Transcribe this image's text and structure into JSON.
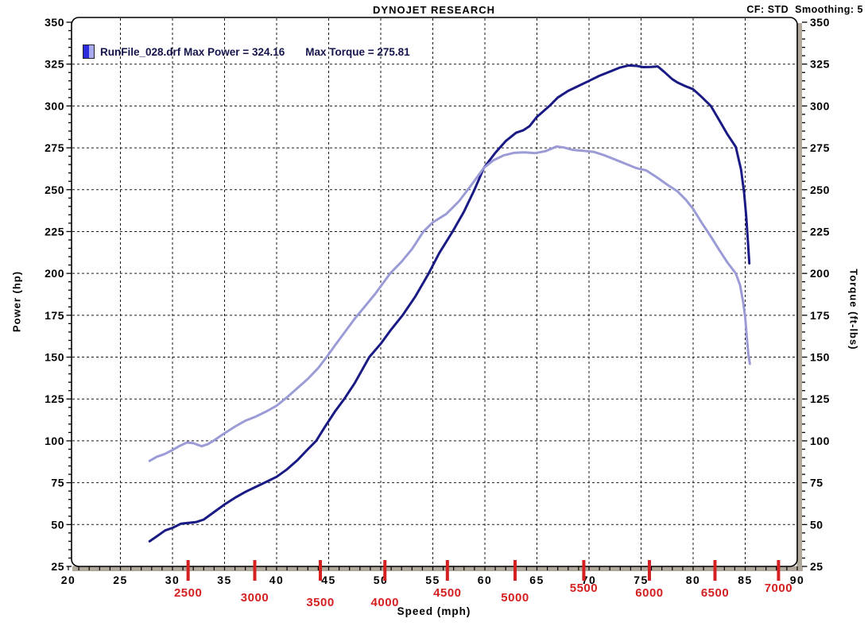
{
  "header": {
    "title": "DYNOJET RESEARCH",
    "cf_info": "CF: STD  Smoothing: 5"
  },
  "legend": {
    "run_label": "RunFile_028.drf Max Power = 324.16",
    "torque_label": "Max Torque = 275.81",
    "swatch_left_color": "#2b2bdc",
    "swatch_right_color": "#a9a9ef"
  },
  "chart_data": {
    "type": "line",
    "title": "DYNOJET RESEARCH",
    "xlabel": "Speed (mph)",
    "ylabel_left": "Power (hp)",
    "ylabel_right": "Torque (ft-lbs)",
    "xlim": [
      20,
      90
    ],
    "ylim": [
      25,
      350
    ],
    "x_tick_labels": [
      20,
      25,
      30,
      35,
      40,
      45,
      50,
      55,
      60,
      65,
      70,
      75,
      80,
      85,
      90
    ],
    "x_minor_step": 1,
    "y_tick_labels": [
      25,
      50,
      75,
      100,
      125,
      150,
      175,
      200,
      225,
      250,
      275,
      300,
      325,
      350
    ],
    "y_minor_step": 5,
    "grid": "dashed, vertical every 5 mph, horizontal every 25 units",
    "frame_shadow_color": "#b0a89a",
    "grid_color": "#1a1a1a",
    "max_power": "324.16",
    "max_torque": "275.81",
    "series": [
      {
        "name": "Power",
        "color": "#1a1a85",
        "points": [
          [
            27.8,
            40
          ],
          [
            28.5,
            43
          ],
          [
            29.3,
            46.5
          ],
          [
            30,
            48
          ],
          [
            30.8,
            50.5
          ],
          [
            31.5,
            51
          ],
          [
            32.3,
            51.5
          ],
          [
            33,
            53
          ],
          [
            34,
            57.5
          ],
          [
            35,
            62
          ],
          [
            36,
            66
          ],
          [
            37,
            69.5
          ],
          [
            38,
            72.5
          ],
          [
            39,
            75.5
          ],
          [
            40,
            78.5
          ],
          [
            41,
            83
          ],
          [
            42,
            88.5
          ],
          [
            43,
            95
          ],
          [
            43.8,
            100
          ],
          [
            44.6,
            108
          ],
          [
            45.6,
            117.5
          ],
          [
            46.5,
            125
          ],
          [
            47.5,
            134.5
          ],
          [
            48.9,
            150
          ],
          [
            50,
            158
          ],
          [
            51,
            166.5
          ],
          [
            52.1,
            175
          ],
          [
            53.3,
            186
          ],
          [
            54.6,
            200
          ],
          [
            55.6,
            212
          ],
          [
            56.9,
            225
          ],
          [
            58,
            237
          ],
          [
            59,
            250
          ],
          [
            59.9,
            263
          ],
          [
            61,
            272
          ],
          [
            62,
            279
          ],
          [
            63,
            284
          ],
          [
            63.7,
            285.5
          ],
          [
            64.3,
            288
          ],
          [
            65,
            293.5
          ],
          [
            66.2,
            300
          ],
          [
            67,
            305
          ],
          [
            68,
            309
          ],
          [
            69,
            312
          ],
          [
            70,
            315
          ],
          [
            71,
            318
          ],
          [
            72,
            320.5
          ],
          [
            73,
            323
          ],
          [
            73.8,
            324.2
          ],
          [
            74.6,
            323.9
          ],
          [
            75.2,
            323.2
          ],
          [
            76,
            323.3
          ],
          [
            76.6,
            323.6
          ],
          [
            77.2,
            320.5
          ],
          [
            78,
            316
          ],
          [
            78.5,
            314
          ],
          [
            79.2,
            312
          ],
          [
            80,
            310
          ],
          [
            80.8,
            305.5
          ],
          [
            81.7,
            300
          ],
          [
            82.5,
            291.5
          ],
          [
            83.3,
            283
          ],
          [
            84.1,
            275.5
          ],
          [
            84.6,
            262
          ],
          [
            84.9,
            248
          ],
          [
            85.1,
            234
          ],
          [
            85.25,
            220
          ],
          [
            85.4,
            206
          ]
        ]
      },
      {
        "name": "Torque",
        "color": "#9b9bd6",
        "points": [
          [
            27.8,
            88
          ],
          [
            28.5,
            90.5
          ],
          [
            29.2,
            92
          ],
          [
            30,
            94.5
          ],
          [
            30.7,
            97
          ],
          [
            31.4,
            99
          ],
          [
            32,
            98.6
          ],
          [
            32.8,
            96.8
          ],
          [
            33.4,
            98
          ],
          [
            34,
            100.3
          ],
          [
            35,
            104.5
          ],
          [
            36,
            108.5
          ],
          [
            37,
            112
          ],
          [
            38,
            114.5
          ],
          [
            39,
            117.5
          ],
          [
            40,
            121
          ],
          [
            41,
            126
          ],
          [
            42,
            131.5
          ],
          [
            43,
            137
          ],
          [
            44,
            143.5
          ],
          [
            44.8,
            150
          ],
          [
            45.6,
            157
          ],
          [
            46.5,
            164.5
          ],
          [
            47.5,
            173
          ],
          [
            48.5,
            180.5
          ],
          [
            49.5,
            188
          ],
          [
            50.9,
            200
          ],
          [
            52,
            207
          ],
          [
            53,
            214.5
          ],
          [
            54.1,
            225
          ],
          [
            55,
            230.5
          ],
          [
            56.3,
            235.5
          ],
          [
            57.5,
            243
          ],
          [
            58.6,
            252
          ],
          [
            59.9,
            263
          ],
          [
            60.8,
            267.5
          ],
          [
            61.8,
            270.5
          ],
          [
            62.8,
            272
          ],
          [
            63.8,
            272.3
          ],
          [
            64.8,
            271.8
          ],
          [
            65.8,
            273
          ],
          [
            66.9,
            275.8
          ],
          [
            67.6,
            275.2
          ],
          [
            68.4,
            273.8
          ],
          [
            69.5,
            273.2
          ],
          [
            70.5,
            272.5
          ],
          [
            71.5,
            270.5
          ],
          [
            72.5,
            268
          ],
          [
            73.5,
            265.5
          ],
          [
            74.5,
            263
          ],
          [
            75.5,
            261.5
          ],
          [
            76.5,
            257.5
          ],
          [
            77.5,
            253
          ],
          [
            78.5,
            249
          ],
          [
            79.3,
            244
          ],
          [
            80,
            238.5
          ],
          [
            80.8,
            230.5
          ],
          [
            81.7,
            222
          ],
          [
            82.5,
            214
          ],
          [
            83.3,
            206.5
          ],
          [
            84.1,
            200
          ],
          [
            84.5,
            193
          ],
          [
            84.8,
            183
          ],
          [
            85,
            174
          ],
          [
            85.15,
            162
          ],
          [
            85.3,
            152
          ],
          [
            85.45,
            146
          ]
        ]
      }
    ],
    "rpm_markers": {
      "color": "#d42020",
      "items": [
        {
          "label": "2500",
          "mph": 31.5,
          "tier": 1
        },
        {
          "label": "3000",
          "mph": 37.9,
          "tier": 2
        },
        {
          "label": "3500",
          "mph": 44.2,
          "tier": 3
        },
        {
          "label": "4000",
          "mph": 50.4,
          "tier": 3
        },
        {
          "label": "4500",
          "mph": 56.4,
          "tier": 1
        },
        {
          "label": "5000",
          "mph": 62.9,
          "tier": 2
        },
        {
          "label": "5500",
          "mph": 69.5,
          "tier": 0
        },
        {
          "label": "6000",
          "mph": 75.8,
          "tier": 1
        },
        {
          "label": "6500",
          "mph": 82.1,
          "tier": 1
        },
        {
          "label": "7000",
          "mph": 88.2,
          "tier": 0
        }
      ]
    }
  }
}
